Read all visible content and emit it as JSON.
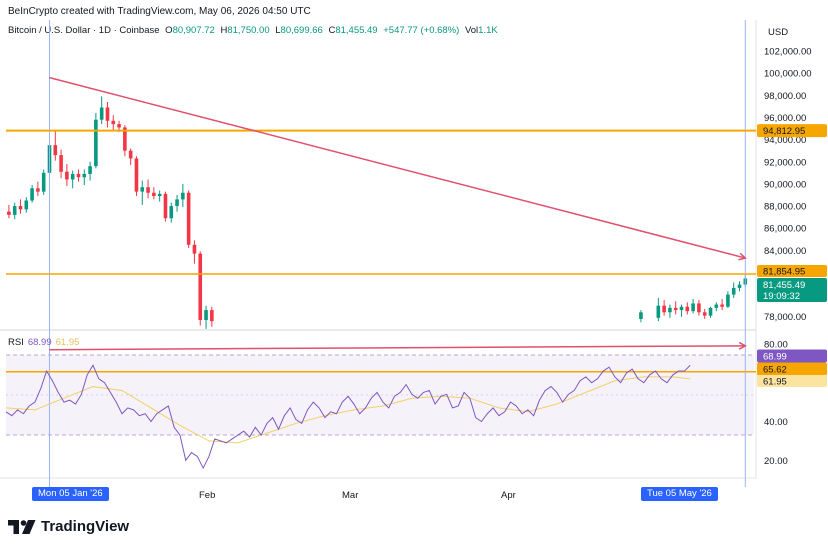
{
  "header": {
    "credit": "BeInCrypto created with TradingView.com, May 06, 2026 04:50 UTC",
    "symbol": "Bitcoin / U.S. Dollar · 1D · Coinbase",
    "o_label": "O",
    "o_value": "80,907.72",
    "h_label": "H",
    "h_value": "81,750.00",
    "l_label": "L",
    "l_value": "80,699.66",
    "c_label": "C",
    "c_value": "81,455.49",
    "change": "+547.77 (+0.68%)",
    "vol_label": "Vol",
    "vol_value": "1.1K"
  },
  "price_axis": {
    "currency": "USD",
    "ticks": [
      "102,000.00",
      "100,000.00",
      "98,000.00",
      "96,000.00",
      "94,000.00",
      "92,000.00",
      "90,000.00",
      "88,000.00",
      "86,000.00",
      "84,000.00",
      "78,000.00"
    ]
  },
  "rsi_axis": {
    "ticks": [
      "80.00",
      "40.00",
      "20.00"
    ]
  },
  "price_tags": {
    "resistance": "94,812.95",
    "support": "81,854.95",
    "last": "81,455.49",
    "countdown": "19:09:32"
  },
  "rsi_tags": {
    "rsi": "68.99",
    "line": "65.62",
    "ma": "61.95"
  },
  "rsi_header": {
    "label": "RSI",
    "value": "68.99",
    "ma": "61.95"
  },
  "time_axis": {
    "start_pill": "Mon 05 Jan '26",
    "end_pill": "Tue 05 May '26",
    "months": [
      "Feb",
      "Mar",
      "Apr"
    ]
  },
  "brand": {
    "name": "TradingView"
  },
  "colors": {
    "up": "#089981",
    "down": "#f23645",
    "resistance": "#f7a600",
    "trend": "#e0506a",
    "rsi": "#7e57c2",
    "rsi_ma": "#f3cf6a",
    "crosshair": "#9ab4f5",
    "pill": "#2962ff"
  },
  "chart_data": [
    {
      "type": "candlestick",
      "title": "Bitcoin / U.S. Dollar · 1D · Coinbase",
      "ylabel": "USD",
      "ylim": [
        76800,
        103000
      ],
      "x_range": [
        "2025-12-29",
        "2026-05-07"
      ],
      "x_ticks": [
        "Feb",
        "Mar",
        "Apr"
      ],
      "ohlc": [
        [
          "2025-12-29",
          87500,
          88100,
          86900,
          87200
        ],
        [
          "2025-12-30",
          87200,
          88300,
          86800,
          88000
        ],
        [
          "2025-12-31",
          88000,
          88600,
          87300,
          87700
        ],
        [
          "2026-01-01",
          87700,
          88800,
          87400,
          88500
        ],
        [
          "2026-01-02",
          88500,
          89900,
          88300,
          89600
        ],
        [
          "2026-01-03",
          89600,
          90200,
          88900,
          89300
        ],
        [
          "2026-01-04",
          89300,
          91300,
          89000,
          91000
        ],
        [
          "2026-01-05",
          91000,
          93800,
          90600,
          93500
        ],
        [
          "2026-01-06",
          93500,
          94800,
          92100,
          92600
        ],
        [
          "2026-01-07",
          92600,
          93100,
          90500,
          91100
        ],
        [
          "2026-01-08",
          91100,
          91800,
          89800,
          90400
        ],
        [
          "2026-01-09",
          90400,
          91200,
          89600,
          90900
        ],
        [
          "2026-01-10",
          90900,
          91300,
          90200,
          90600
        ],
        [
          "2026-01-11",
          90600,
          91300,
          89900,
          90900
        ],
        [
          "2026-01-12",
          90900,
          92000,
          90300,
          91600
        ],
        [
          "2026-01-13",
          91600,
          96400,
          91400,
          95800
        ],
        [
          "2026-01-14",
          95800,
          97900,
          95400,
          96900
        ],
        [
          "2026-01-15",
          96900,
          97400,
          95100,
          95700
        ],
        [
          "2026-01-16",
          95700,
          96200,
          94800,
          95400
        ],
        [
          "2026-01-17",
          95400,
          95700,
          94700,
          95100
        ],
        [
          "2026-01-18",
          95100,
          95300,
          92500,
          93000
        ],
        [
          "2026-01-19",
          93000,
          93200,
          91700,
          92300
        ],
        [
          "2026-01-20",
          92300,
          92500,
          88900,
          89300
        ],
        [
          "2026-01-21",
          89300,
          90300,
          88100,
          89700
        ],
        [
          "2026-01-22",
          89700,
          90400,
          88700,
          89200
        ],
        [
          "2026-01-23",
          89200,
          89700,
          88600,
          88900
        ],
        [
          "2026-01-24",
          88900,
          89400,
          88400,
          89100
        ],
        [
          "2026-01-25",
          89100,
          89300,
          86600,
          86900
        ],
        [
          "2026-01-26",
          86900,
          88300,
          86500,
          88000
        ],
        [
          "2026-01-27",
          88000,
          89000,
          87500,
          88600
        ],
        [
          "2026-01-28",
          88600,
          90000,
          87900,
          89200
        ],
        [
          "2026-01-29",
          89200,
          89400,
          84200,
          84500
        ],
        [
          "2026-01-30",
          84500,
          84900,
          82800,
          83700
        ],
        [
          "2026-01-31",
          83700,
          83900,
          77200,
          77700
        ],
        [
          "2026-02-01",
          77700,
          79000,
          76900,
          78600
        ],
        [
          "2026-02-02",
          78600,
          78900,
          77100,
          77600
        ],
        [
          "2026-04-17",
          77800,
          78600,
          77500,
          78400
        ],
        [
          "2026-04-20",
          77900,
          79700,
          77600,
          79000
        ],
        [
          "2026-04-21",
          79000,
          79500,
          78100,
          78400
        ],
        [
          "2026-04-22",
          78400,
          79100,
          77900,
          78800
        ],
        [
          "2026-04-23",
          78800,
          79400,
          78200,
          78600
        ],
        [
          "2026-04-24",
          78600,
          79100,
          78000,
          78900
        ],
        [
          "2026-04-25",
          78900,
          79300,
          78200,
          78500
        ],
        [
          "2026-04-26",
          78500,
          79600,
          78300,
          79200
        ],
        [
          "2026-04-27",
          79200,
          79500,
          78100,
          78400
        ],
        [
          "2026-04-28",
          78400,
          78700,
          77800,
          78100
        ],
        [
          "2026-04-29",
          78100,
          78900,
          77900,
          78800
        ],
        [
          "2026-04-30",
          78800,
          79300,
          78500,
          79100
        ],
        [
          "2026-05-01",
          79100,
          79600,
          78600,
          78900
        ],
        [
          "2026-05-02",
          78900,
          80300,
          78800,
          80000
        ],
        [
          "2026-05-03",
          80000,
          81100,
          79700,
          80600
        ],
        [
          "2026-05-04",
          80600,
          81200,
          80300,
          80900
        ],
        [
          "2026-05-05",
          80907.72,
          81750,
          80699.66,
          81455.49
        ]
      ],
      "horizontal_lines": [
        94812.95,
        81854.95
      ],
      "trendline": {
        "from": [
          "2026-01-05",
          99600
        ],
        "to": [
          "2026-05-05",
          83300
        ]
      },
      "crosshair_dates": [
        "2026-01-05",
        "2026-05-05"
      ]
    },
    {
      "type": "line",
      "title": "RSI",
      "ylim": [
        15,
        82
      ],
      "bands": [
        30,
        70
      ],
      "guide_line": 65.62,
      "x_range": [
        "2025-12-29",
        "2026-05-07"
      ],
      "series": [
        {
          "name": "RSI",
          "values": [
            [
              0,
              45
            ],
            [
              1,
              43
            ],
            [
              2,
              46
            ],
            [
              3,
              44
            ],
            [
              4,
              48
            ],
            [
              5,
              50
            ],
            [
              6,
              57
            ],
            [
              7,
              66
            ],
            [
              8,
              61
            ],
            [
              9,
              55
            ],
            [
              10,
              50
            ],
            [
              11,
              51
            ],
            [
              12,
              49
            ],
            [
              13,
              54
            ],
            [
              14,
              64
            ],
            [
              15,
              69
            ],
            [
              16,
              62
            ],
            [
              17,
              60
            ],
            [
              18,
              55
            ],
            [
              19,
              50
            ],
            [
              20,
              44
            ],
            [
              21,
              47
            ],
            [
              22,
              46
            ],
            [
              23,
              43
            ],
            [
              24,
              44
            ],
            [
              25,
              40
            ],
            [
              26,
              44
            ],
            [
              27,
              46
            ],
            [
              28,
              48
            ],
            [
              29,
              37
            ],
            [
              30,
              33
            ],
            [
              31,
              20
            ],
            [
              32,
              24
            ],
            [
              33,
              22
            ],
            [
              34,
              16
            ],
            [
              35,
              22
            ],
            [
              36,
              31
            ],
            [
              37,
              30
            ],
            [
              38,
              29
            ],
            [
              39,
              31
            ],
            [
              40,
              33
            ],
            [
              41,
              35
            ],
            [
              42,
              32
            ],
            [
              43,
              37
            ],
            [
              44,
              33
            ],
            [
              45,
              39
            ],
            [
              46,
              42
            ],
            [
              47,
              36
            ],
            [
              48,
              43
            ],
            [
              49,
              47
            ],
            [
              50,
              41
            ],
            [
              51,
              39
            ],
            [
              52,
              46
            ],
            [
              53,
              50
            ],
            [
              54,
              47
            ],
            [
              55,
              42
            ],
            [
              56,
              45
            ],
            [
              57,
              44
            ],
            [
              58,
              50
            ],
            [
              59,
              53
            ],
            [
              60,
              49
            ],
            [
              61,
              44
            ],
            [
              62,
              47
            ],
            [
              63,
              52
            ],
            [
              64,
              55
            ],
            [
              65,
              50
            ],
            [
              66,
              47
            ],
            [
              67,
              53
            ],
            [
              68,
              55
            ],
            [
              69,
              59
            ],
            [
              70,
              54
            ],
            [
              71,
              52
            ],
            [
              72,
              55
            ],
            [
              73,
              56
            ],
            [
              74,
              49
            ],
            [
              75,
              53
            ],
            [
              76,
              54
            ],
            [
              77,
              47
            ],
            [
              78,
              48
            ],
            [
              79,
              55
            ],
            [
              80,
              52
            ],
            [
              81,
              42
            ],
            [
              82,
              40
            ],
            [
              83,
              44
            ],
            [
              84,
              47
            ],
            [
              85,
              43
            ],
            [
              86,
              45
            ],
            [
              87,
              50
            ],
            [
              88,
              48
            ],
            [
              89,
              44
            ],
            [
              90,
              46
            ],
            [
              91,
              43
            ],
            [
              92,
              51
            ],
            [
              93,
              56
            ],
            [
              94,
              58
            ],
            [
              95,
              55
            ],
            [
              96,
              50
            ],
            [
              97,
              54
            ],
            [
              98,
              56
            ],
            [
              99,
              61
            ],
            [
              100,
              63
            ],
            [
              101,
              60
            ],
            [
              102,
              62
            ],
            [
              103,
              66
            ],
            [
              104,
              68
            ],
            [
              105,
              63
            ],
            [
              106,
              60
            ],
            [
              107,
              65
            ],
            [
              108,
              67
            ],
            [
              109,
              62
            ],
            [
              110,
              60
            ],
            [
              111,
              64
            ],
            [
              112,
              66
            ],
            [
              113,
              62
            ],
            [
              114,
              60
            ],
            [
              115,
              64
            ],
            [
              116,
              66
            ],
            [
              117,
              66
            ],
            [
              118,
              68.99
            ]
          ]
        },
        {
          "name": "RSI-based MA",
          "values": [
            [
              0,
              47
            ],
            [
              5,
              46
            ],
            [
              10,
              52
            ],
            [
              15,
              58
            ],
            [
              20,
              56
            ],
            [
              25,
              47
            ],
            [
              30,
              38
            ],
            [
              35,
              30
            ],
            [
              40,
              29
            ],
            [
              45,
              34
            ],
            [
              50,
              39
            ],
            [
              55,
              43
            ],
            [
              60,
              46
            ],
            [
              65,
              48
            ],
            [
              70,
              52
            ],
            [
              75,
              53
            ],
            [
              80,
              52
            ],
            [
              85,
              47
            ],
            [
              90,
              45
            ],
            [
              95,
              49
            ],
            [
              100,
              55
            ],
            [
              105,
              61
            ],
            [
              110,
              63
            ],
            [
              115,
              63
            ],
            [
              118,
              61.95
            ]
          ]
        }
      ],
      "trendline": {
        "from": [
          "2026-01-05",
          77
        ],
        "to": [
          "2026-05-05",
          79
        ]
      }
    }
  ]
}
